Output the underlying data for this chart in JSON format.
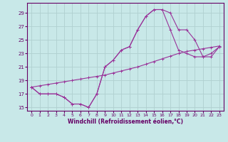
{
  "background_color": "#c8e8e8",
  "grid_color": "#b0d0d0",
  "line_color": "#993399",
  "xlabel": "Windchill (Refroidissement éolien,°C)",
  "xlim": [
    -0.5,
    23.5
  ],
  "ylim": [
    14.5,
    30.5
  ],
  "yticks": [
    15,
    17,
    19,
    21,
    23,
    25,
    27,
    29
  ],
  "xticks": [
    0,
    1,
    2,
    3,
    4,
    5,
    6,
    7,
    8,
    9,
    10,
    11,
    12,
    13,
    14,
    15,
    16,
    17,
    18,
    19,
    20,
    21,
    22,
    23
  ],
  "line1_y": [
    18.0,
    17.0,
    17.0,
    17.0,
    16.5,
    15.5,
    15.5,
    15.0,
    17.0,
    21.0,
    22.0,
    23.5,
    24.0,
    26.5,
    28.5,
    29.5,
    29.5,
    29.0,
    26.5,
    26.5,
    25.0,
    22.5,
    23.0,
    24.0
  ],
  "line2_y": [
    18.0,
    17.0,
    17.0,
    17.0,
    16.5,
    15.5,
    15.5,
    15.0,
    17.0,
    21.0,
    22.0,
    23.5,
    24.0,
    26.5,
    28.5,
    29.5,
    29.5,
    26.5,
    23.5,
    23.0,
    22.5,
    22.5,
    22.5,
    24.0
  ],
  "line3_y": [
    18.0,
    18.2,
    18.4,
    18.6,
    18.8,
    19.0,
    19.2,
    19.4,
    19.6,
    19.8,
    20.1,
    20.4,
    20.7,
    21.0,
    21.4,
    21.8,
    22.2,
    22.6,
    23.0,
    23.3,
    23.5,
    23.7,
    23.9,
    24.1
  ]
}
